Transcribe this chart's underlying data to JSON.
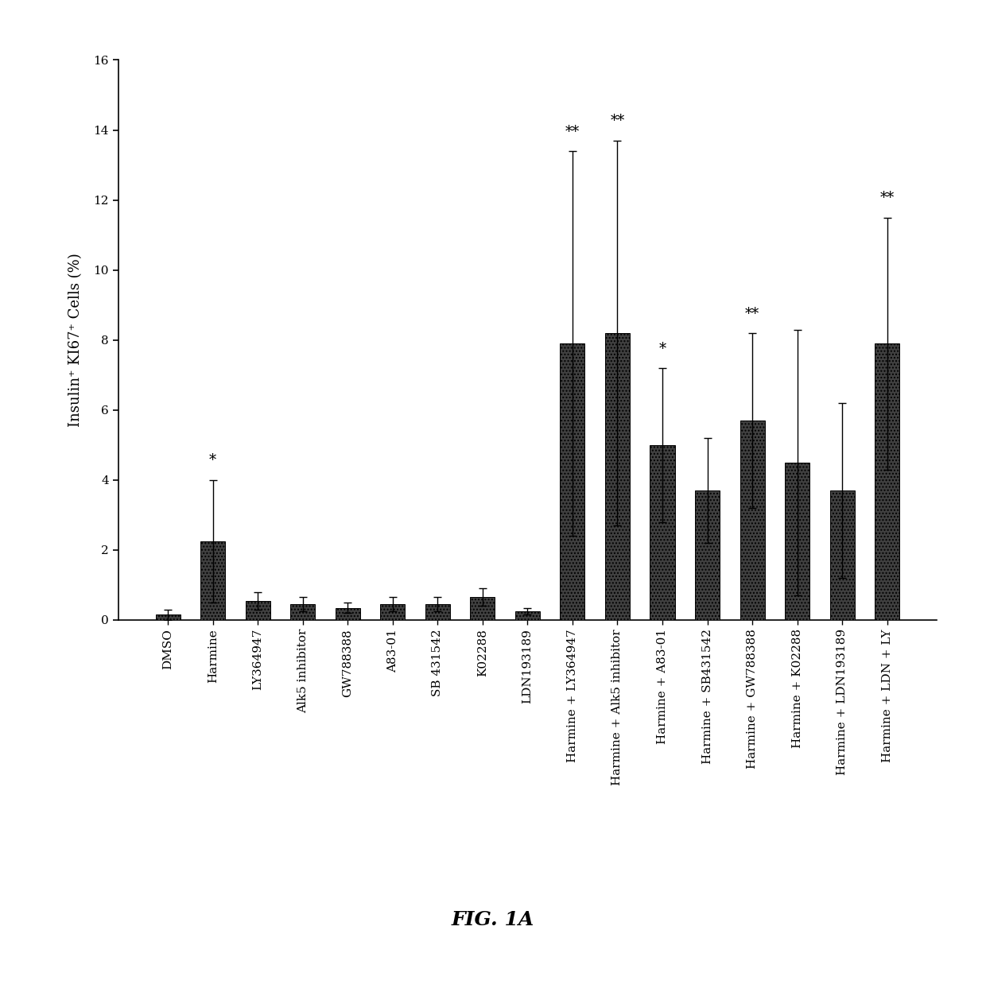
{
  "categories": [
    "DMSO",
    "Harmine",
    "LY364947",
    "Alk5 inhibitor",
    "GW788388",
    "A83-01",
    "SB 431542",
    "K02288",
    "LDN193189",
    "Harmine + LY364947",
    "Harmine + Alk5 inhibitor",
    "Harmine + A83-01",
    "Harmine + SB431542",
    "Harmine + GW788388",
    "Harmine + K02288",
    "Harmine + LDN193189",
    "Harmine + LDN + LY"
  ],
  "values": [
    0.15,
    2.25,
    0.55,
    0.45,
    0.35,
    0.45,
    0.45,
    0.65,
    0.25,
    7.9,
    8.2,
    5.0,
    3.7,
    5.7,
    4.5,
    3.7,
    7.9
  ],
  "errors": [
    0.15,
    1.75,
    0.25,
    0.2,
    0.15,
    0.2,
    0.2,
    0.25,
    0.1,
    5.5,
    5.5,
    2.2,
    1.5,
    2.5,
    3.8,
    2.5,
    3.6
  ],
  "significance": [
    "",
    "*",
    "",
    "",
    "",
    "",
    "",
    "",
    "",
    "**",
    "**",
    "*",
    "",
    "**",
    "",
    "",
    "**"
  ],
  "bar_color": "#404040",
  "bar_hatch": "....",
  "ylabel": "Insulin⁺ KI67⁺ Cells (%)",
  "ylim": [
    0,
    16
  ],
  "yticks": [
    0,
    2,
    4,
    6,
    8,
    10,
    12,
    14,
    16
  ],
  "fig_label": "FIG. 1A",
  "tick_fontsize": 11,
  "label_fontsize": 13,
  "sig_fontsize": 13
}
